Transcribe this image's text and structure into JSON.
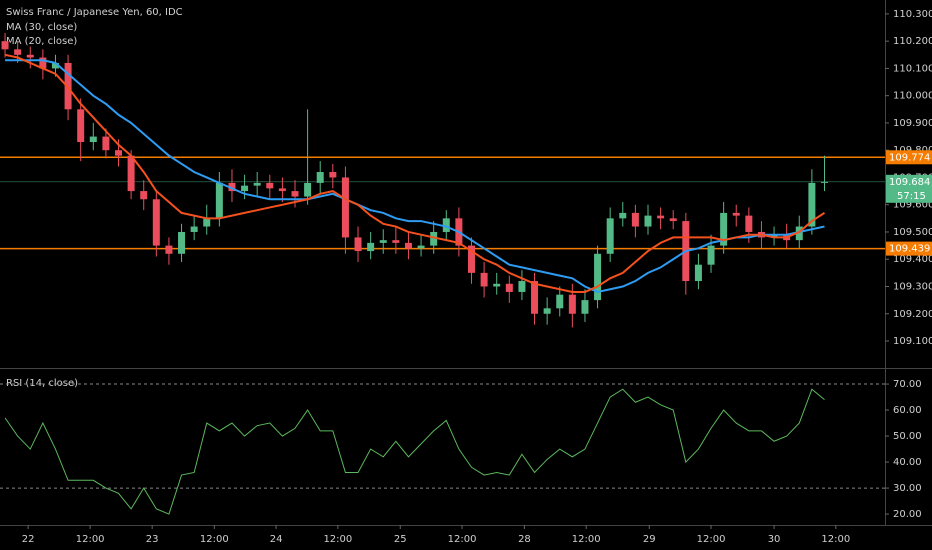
{
  "chart_data": {
    "type": "candlestick",
    "title": "Swiss Franc / Japanese Yen, 60, IDC",
    "xlim": [
      -0.4,
      69.8
    ],
    "ylim": [
      109.001,
      110.351
    ],
    "xticks": [
      {
        "value": 1.83,
        "label": "22"
      },
      {
        "value": 6.75,
        "label": "12:00"
      },
      {
        "value": 11.67,
        "label": "23"
      },
      {
        "value": 16.6,
        "label": "12:00"
      },
      {
        "value": 21.5,
        "label": "24"
      },
      {
        "value": 26.4,
        "label": "12:00"
      },
      {
        "value": 31.35,
        "label": "25"
      },
      {
        "value": 36.25,
        "label": "12:00"
      },
      {
        "value": 41.2,
        "label": "28"
      },
      {
        "value": 46.1,
        "label": "12:00"
      },
      {
        "value": 51.1,
        "label": "29"
      },
      {
        "value": 56.0,
        "label": "12:00"
      },
      {
        "value": 61.0,
        "label": "30"
      },
      {
        "value": 65.9,
        "label": "12:00"
      }
    ],
    "yticks": [
      {
        "value": 110.3,
        "label": "110.300"
      },
      {
        "value": 110.2,
        "label": "110.200"
      },
      {
        "value": 110.1,
        "label": "110.100"
      },
      {
        "value": 110.0,
        "label": "110.000"
      },
      {
        "value": 109.9,
        "label": "109.900"
      },
      {
        "value": 109.8,
        "label": "109.800"
      },
      {
        "value": 109.7,
        "label": "109.700"
      },
      {
        "value": 109.6,
        "label": "109.600"
      },
      {
        "value": 109.5,
        "label": "109.500"
      },
      {
        "value": 109.4,
        "label": "109.400"
      },
      {
        "value": 109.3,
        "label": "109.300"
      },
      {
        "value": 109.2,
        "label": "109.200"
      },
      {
        "value": 109.1,
        "label": "109.100"
      }
    ],
    "up_color": "#53b987",
    "down_color": "#eb4d5c",
    "candles": {
      "open": [
        110.2,
        110.17,
        110.15,
        110.14,
        110.1,
        110.12,
        109.95,
        109.83,
        109.85,
        109.8,
        109.78,
        109.65,
        109.62,
        109.45,
        109.42,
        109.5,
        109.52,
        109.55,
        109.68,
        109.65,
        109.67,
        109.68,
        109.66,
        109.65,
        109.63,
        109.68,
        109.72,
        109.7,
        109.48,
        109.43,
        109.46,
        109.47,
        109.46,
        109.44,
        109.45,
        109.5,
        109.55,
        109.45,
        109.35,
        109.3,
        109.31,
        109.28,
        109.32,
        109.2,
        109.22,
        109.27,
        109.2,
        109.25,
        109.42,
        109.55,
        109.57,
        109.52,
        109.56,
        109.55,
        109.54,
        109.32,
        109.38,
        109.45,
        109.57,
        109.56,
        109.5,
        109.48,
        109.49,
        109.47,
        109.52,
        109.68
      ],
      "high": [
        110.23,
        110.2,
        110.18,
        110.17,
        110.15,
        110.15,
        109.99,
        109.9,
        109.88,
        109.84,
        109.8,
        109.69,
        109.65,
        109.48,
        109.53,
        109.56,
        109.6,
        109.72,
        109.73,
        109.71,
        109.72,
        109.71,
        109.7,
        109.69,
        109.95,
        109.76,
        109.75,
        109.74,
        109.52,
        109.5,
        109.51,
        109.52,
        109.5,
        109.49,
        109.54,
        109.58,
        109.59,
        109.48,
        109.39,
        109.35,
        109.34,
        109.36,
        109.35,
        109.26,
        109.3,
        109.31,
        109.29,
        109.45,
        109.59,
        109.61,
        109.6,
        109.6,
        109.59,
        109.58,
        109.57,
        109.42,
        109.49,
        109.61,
        109.6,
        109.59,
        109.54,
        109.52,
        109.53,
        109.56,
        109.73,
        109.78
      ],
      "low": [
        110.14,
        110.12,
        110.1,
        110.06,
        110.07,
        109.91,
        109.76,
        109.8,
        109.77,
        109.74,
        109.62,
        109.58,
        109.41,
        109.38,
        109.39,
        109.47,
        109.49,
        109.52,
        109.61,
        109.62,
        109.63,
        109.62,
        109.61,
        109.59,
        109.6,
        109.64,
        109.66,
        109.42,
        109.39,
        109.4,
        109.42,
        109.42,
        109.4,
        109.41,
        109.42,
        109.47,
        109.41,
        109.31,
        109.26,
        109.27,
        109.24,
        109.25,
        109.16,
        109.16,
        109.19,
        109.15,
        109.17,
        109.22,
        109.39,
        109.52,
        109.48,
        109.49,
        109.51,
        109.51,
        109.27,
        109.29,
        109.35,
        109.42,
        109.52,
        109.46,
        109.44,
        109.45,
        109.44,
        109.44,
        109.49,
        109.65
      ],
      "close": [
        110.17,
        110.15,
        110.14,
        110.1,
        110.12,
        109.95,
        109.83,
        109.85,
        109.8,
        109.78,
        109.65,
        109.62,
        109.45,
        109.42,
        109.5,
        109.52,
        109.55,
        109.68,
        109.65,
        109.67,
        109.68,
        109.66,
        109.65,
        109.63,
        109.68,
        109.72,
        109.7,
        109.48,
        109.43,
        109.46,
        109.47,
        109.46,
        109.44,
        109.45,
        109.5,
        109.55,
        109.45,
        109.35,
        109.3,
        109.31,
        109.28,
        109.32,
        109.2,
        109.22,
        109.27,
        109.2,
        109.25,
        109.42,
        109.55,
        109.57,
        109.52,
        109.56,
        109.55,
        109.54,
        109.32,
        109.38,
        109.45,
        109.57,
        109.56,
        109.5,
        109.48,
        109.49,
        109.47,
        109.52,
        109.68,
        109.684
      ]
    },
    "series": [
      {
        "name": "MA (30, close)",
        "color": "#2e9cf2",
        "values": [
          110.13,
          110.13,
          110.13,
          110.13,
          110.12,
          110.08,
          110.04,
          110.0,
          109.97,
          109.93,
          109.9,
          109.86,
          109.82,
          109.78,
          109.75,
          109.72,
          109.7,
          109.68,
          109.66,
          109.64,
          109.63,
          109.62,
          109.62,
          109.62,
          109.62,
          109.63,
          109.64,
          109.62,
          109.6,
          109.58,
          109.57,
          109.55,
          109.54,
          109.54,
          109.53,
          109.52,
          109.5,
          109.47,
          109.44,
          109.41,
          109.38,
          109.37,
          109.36,
          109.35,
          109.34,
          109.33,
          109.3,
          109.28,
          109.29,
          109.3,
          109.32,
          109.35,
          109.37,
          109.4,
          109.43,
          109.44,
          109.46,
          109.47,
          109.48,
          109.48,
          109.49,
          109.49,
          109.49,
          109.5,
          109.51,
          109.52
        ]
      },
      {
        "name": "MA (20, close)",
        "color": "#f4511e",
        "values": [
          110.15,
          110.14,
          110.12,
          110.1,
          110.08,
          110.03,
          109.97,
          109.92,
          109.87,
          109.82,
          109.78,
          109.72,
          109.65,
          109.61,
          109.57,
          109.56,
          109.55,
          109.55,
          109.56,
          109.57,
          109.58,
          109.59,
          109.6,
          109.61,
          109.62,
          109.64,
          109.65,
          109.62,
          109.6,
          109.56,
          109.53,
          109.52,
          109.5,
          109.49,
          109.48,
          109.47,
          109.46,
          109.43,
          109.4,
          109.38,
          109.35,
          109.33,
          109.31,
          109.3,
          109.29,
          109.28,
          109.28,
          109.3,
          109.33,
          109.35,
          109.39,
          109.43,
          109.46,
          109.48,
          109.48,
          109.48,
          109.48,
          109.47,
          109.48,
          109.49,
          109.49,
          109.48,
          109.48,
          109.5,
          109.54,
          109.57
        ]
      }
    ],
    "levels": [
      {
        "value": 109.774,
        "color": "#f57c00"
      },
      {
        "value": 109.439,
        "color": "#f57c00"
      }
    ],
    "last_price": {
      "value": 109.684,
      "countdown": "57:15",
      "color": "#53b987"
    },
    "rsi": {
      "name": "RSI (14, close)",
      "color": "#5cb85c",
      "ylim": [
        15.8,
        75.4
      ],
      "yticks": [
        {
          "value": 70,
          "label": "70.00"
        },
        {
          "value": 60,
          "label": "60.00"
        },
        {
          "value": 50,
          "label": "50.00"
        },
        {
          "value": 40,
          "label": "40.00"
        },
        {
          "value": 30,
          "label": "30.00"
        },
        {
          "value": 20,
          "label": "20.00"
        }
      ],
      "bands": [
        70,
        30
      ],
      "values": [
        57,
        50,
        45,
        55,
        45,
        33,
        33,
        33,
        30,
        28,
        22,
        30,
        22,
        20,
        35,
        36,
        55,
        52,
        55,
        50,
        54,
        55,
        50,
        53,
        60,
        52,
        52,
        36,
        36,
        45,
        42,
        48,
        42,
        47,
        52,
        56,
        45,
        38,
        35,
        36,
        35,
        43,
        36,
        41,
        45,
        42,
        45,
        55,
        65,
        68,
        63,
        65,
        62,
        60,
        40,
        45,
        53,
        60,
        55,
        52,
        52,
        48,
        50,
        55,
        68,
        64
      ]
    }
  }
}
